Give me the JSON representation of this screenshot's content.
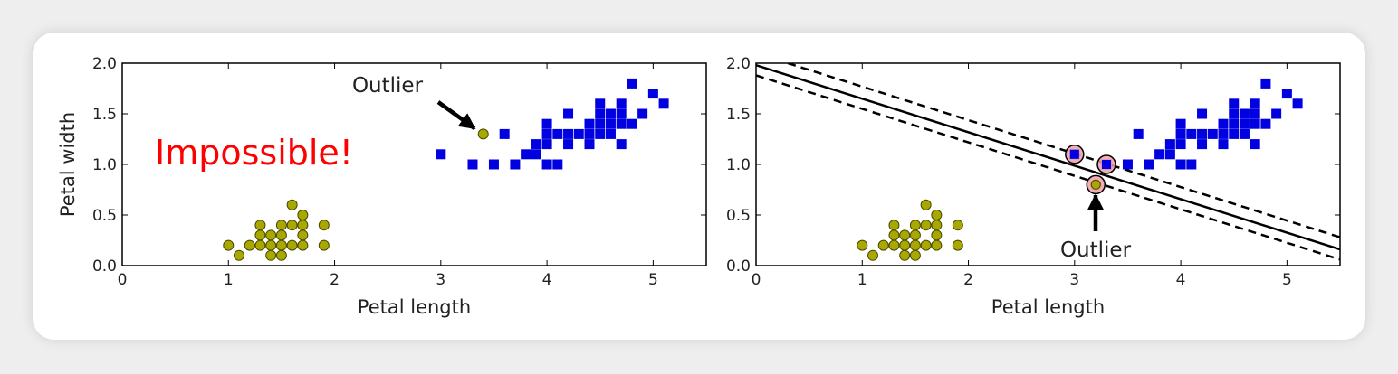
{
  "figure": {
    "colors": {
      "square_class": "#0000e0",
      "circle_class": "#a8a800",
      "circle_edge": "#4a4a00",
      "support_vector_ring": "#f0a0a8",
      "impossible_text": "#ff0000",
      "axes": "#000000"
    }
  },
  "chart_data": [
    {
      "type": "scatter",
      "title": "",
      "xlabel": "Petal length",
      "ylabel": "Petal width",
      "xlim": [
        0,
        5.5
      ],
      "ylim": [
        0,
        2.0
      ],
      "xticks": [
        "0",
        "1",
        "2",
        "3",
        "4",
        "5"
      ],
      "yticks": [
        "0.0",
        "0.5",
        "1.0",
        "1.5",
        "2.0"
      ],
      "grid": false,
      "series": [
        {
          "marker": "circle",
          "color": "#a8a800",
          "points": [
            [
              1.0,
              0.2
            ],
            [
              1.1,
              0.1
            ],
            [
              1.2,
              0.2
            ],
            [
              1.3,
              0.2
            ],
            [
              1.3,
              0.3
            ],
            [
              1.3,
              0.4
            ],
            [
              1.4,
              0.1
            ],
            [
              1.4,
              0.2
            ],
            [
              1.4,
              0.3
            ],
            [
              1.5,
              0.1
            ],
            [
              1.5,
              0.2
            ],
            [
              1.5,
              0.3
            ],
            [
              1.5,
              0.4
            ],
            [
              1.6,
              0.2
            ],
            [
              1.6,
              0.4
            ],
            [
              1.6,
              0.6
            ],
            [
              1.7,
              0.2
            ],
            [
              1.7,
              0.3
            ],
            [
              1.7,
              0.4
            ],
            [
              1.7,
              0.5
            ],
            [
              1.9,
              0.2
            ],
            [
              1.9,
              0.4
            ],
            [
              3.4,
              1.3
            ]
          ]
        },
        {
          "marker": "square",
          "color": "#0000e0",
          "points": [
            [
              3.0,
              1.1
            ],
            [
              3.3,
              1.0
            ],
            [
              3.5,
              1.0
            ],
            [
              3.6,
              1.3
            ],
            [
              3.7,
              1.0
            ],
            [
              3.8,
              1.1
            ],
            [
              3.9,
              1.2
            ],
            [
              3.9,
              1.1
            ],
            [
              4.0,
              1.0
            ],
            [
              4.0,
              1.2
            ],
            [
              4.0,
              1.3
            ],
            [
              4.0,
              1.4
            ],
            [
              4.1,
              1.0
            ],
            [
              4.1,
              1.3
            ],
            [
              4.2,
              1.2
            ],
            [
              4.2,
              1.3
            ],
            [
              4.2,
              1.5
            ],
            [
              4.3,
              1.3
            ],
            [
              4.4,
              1.2
            ],
            [
              4.4,
              1.3
            ],
            [
              4.4,
              1.4
            ],
            [
              4.5,
              1.3
            ],
            [
              4.5,
              1.4
            ],
            [
              4.5,
              1.5
            ],
            [
              4.5,
              1.6
            ],
            [
              4.6,
              1.3
            ],
            [
              4.6,
              1.4
            ],
            [
              4.6,
              1.5
            ],
            [
              4.7,
              1.2
            ],
            [
              4.7,
              1.4
            ],
            [
              4.7,
              1.5
            ],
            [
              4.7,
              1.6
            ],
            [
              4.8,
              1.4
            ],
            [
              4.8,
              1.8
            ],
            [
              4.9,
              1.5
            ],
            [
              5.0,
              1.7
            ],
            [
              5.1,
              1.6
            ]
          ]
        }
      ],
      "annotations": [
        {
          "text": "Outlier",
          "target": [
            3.4,
            1.3
          ]
        },
        {
          "text": "Impossible!",
          "color": "#ff0000"
        }
      ]
    },
    {
      "type": "scatter",
      "title": "",
      "xlabel": "Petal length",
      "ylabel": "",
      "xlim": [
        0,
        5.5
      ],
      "ylim": [
        0,
        2.0
      ],
      "xticks": [
        "0",
        "1",
        "2",
        "3",
        "4",
        "5"
      ],
      "yticks": [
        "0.0",
        "0.5",
        "1.0",
        "1.5",
        "2.0"
      ],
      "grid": false,
      "series": [
        {
          "marker": "circle",
          "color": "#a8a800",
          "points": [
            [
              1.0,
              0.2
            ],
            [
              1.1,
              0.1
            ],
            [
              1.2,
              0.2
            ],
            [
              1.3,
              0.2
            ],
            [
              1.3,
              0.3
            ],
            [
              1.3,
              0.4
            ],
            [
              1.4,
              0.1
            ],
            [
              1.4,
              0.2
            ],
            [
              1.4,
              0.3
            ],
            [
              1.5,
              0.1
            ],
            [
              1.5,
              0.2
            ],
            [
              1.5,
              0.3
            ],
            [
              1.5,
              0.4
            ],
            [
              1.6,
              0.2
            ],
            [
              1.6,
              0.4
            ],
            [
              1.6,
              0.6
            ],
            [
              1.7,
              0.2
            ],
            [
              1.7,
              0.3
            ],
            [
              1.7,
              0.4
            ],
            [
              1.7,
              0.5
            ],
            [
              1.9,
              0.2
            ],
            [
              1.9,
              0.4
            ],
            [
              3.2,
              0.8
            ]
          ]
        },
        {
          "marker": "square",
          "color": "#0000e0",
          "points": [
            [
              3.0,
              1.1
            ],
            [
              3.3,
              1.0
            ],
            [
              3.5,
              1.0
            ],
            [
              3.6,
              1.3
            ],
            [
              3.7,
              1.0
            ],
            [
              3.8,
              1.1
            ],
            [
              3.9,
              1.2
            ],
            [
              3.9,
              1.1
            ],
            [
              4.0,
              1.0
            ],
            [
              4.0,
              1.2
            ],
            [
              4.0,
              1.3
            ],
            [
              4.0,
              1.4
            ],
            [
              4.1,
              1.0
            ],
            [
              4.1,
              1.3
            ],
            [
              4.2,
              1.2
            ],
            [
              4.2,
              1.3
            ],
            [
              4.2,
              1.5
            ],
            [
              4.3,
              1.3
            ],
            [
              4.4,
              1.2
            ],
            [
              4.4,
              1.3
            ],
            [
              4.4,
              1.4
            ],
            [
              4.5,
              1.3
            ],
            [
              4.5,
              1.4
            ],
            [
              4.5,
              1.5
            ],
            [
              4.5,
              1.6
            ],
            [
              4.6,
              1.3
            ],
            [
              4.6,
              1.4
            ],
            [
              4.6,
              1.5
            ],
            [
              4.7,
              1.2
            ],
            [
              4.7,
              1.4
            ],
            [
              4.7,
              1.5
            ],
            [
              4.7,
              1.6
            ],
            [
              4.8,
              1.4
            ],
            [
              4.8,
              1.8
            ],
            [
              4.9,
              1.5
            ],
            [
              5.0,
              1.7
            ],
            [
              5.1,
              1.6
            ]
          ]
        }
      ],
      "support_vectors": [
        [
          3.0,
          1.1
        ],
        [
          3.3,
          1.0
        ],
        [
          3.2,
          0.8
        ]
      ],
      "decision_boundary": {
        "style": "solid",
        "points": [
          [
            0,
            1.98
          ],
          [
            5.5,
            0.16
          ]
        ]
      },
      "margins": [
        {
          "style": "dashed",
          "points": [
            [
              0.3,
              2.0
            ],
            [
              5.5,
              0.28
            ]
          ]
        },
        {
          "style": "dashed",
          "points": [
            [
              0,
              1.88
            ],
            [
              5.5,
              0.06
            ]
          ]
        }
      ],
      "annotations": [
        {
          "text": "Outlier",
          "target": [
            3.2,
            0.8
          ]
        }
      ]
    }
  ]
}
